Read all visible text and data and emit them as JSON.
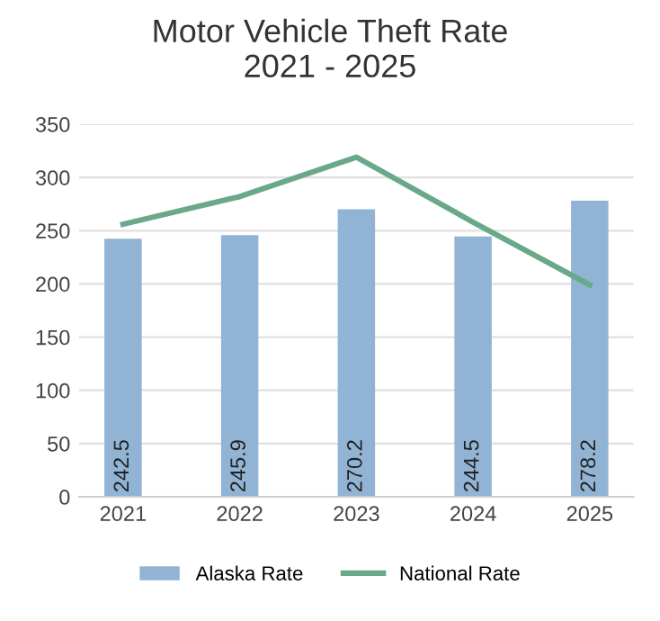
{
  "chart_data": {
    "type": "bar",
    "title": "Motor Vehicle Theft Rate\n2021 - 2025",
    "categories": [
      "2021",
      "2022",
      "2023",
      "2024",
      "2025"
    ],
    "series": [
      {
        "name": "Alaska Rate",
        "color": "#91b4d5",
        "values": [
          242.5,
          245.9,
          270.2,
          244.5,
          278.2
        ],
        "value_labels": [
          "242.5",
          "245.9",
          "270.2",
          "244.5",
          "278.2"
        ]
      },
      {
        "name": "National Rate",
        "type": "line",
        "color": "#6aa88a",
        "values": [
          256,
          282,
          319,
          258,
          199
        ]
      }
    ],
    "ylim": [
      0,
      350
    ],
    "yticks": [
      0,
      50,
      100,
      150,
      200,
      250,
      300,
      350
    ],
    "grid": "y",
    "legend": "bottom",
    "marker": "none",
    "line_style": "solid"
  }
}
